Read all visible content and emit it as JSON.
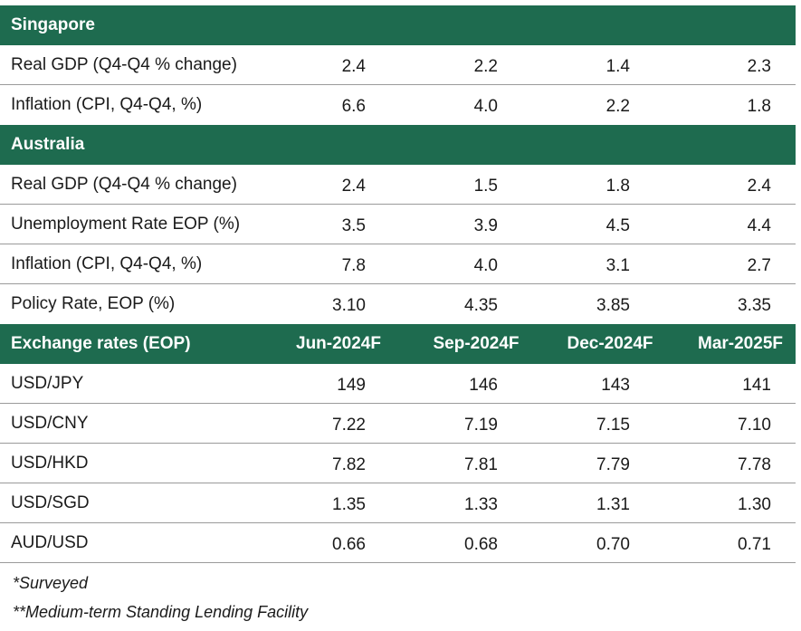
{
  "sections": {
    "singapore": {
      "title": "Singapore",
      "rows": [
        {
          "label": "Real GDP (Q4-Q4 % change)",
          "values": [
            "2.4",
            "2.2",
            "1.4",
            "2.3"
          ]
        },
        {
          "label": "Inflation (CPI, Q4-Q4, %)",
          "values": [
            "6.6",
            "4.0",
            "2.2",
            "1.8"
          ]
        }
      ]
    },
    "australia": {
      "title": "Australia",
      "rows": [
        {
          "label": "Real GDP (Q4-Q4 % change)",
          "values": [
            "2.4",
            "1.5",
            "1.8",
            "2.4"
          ]
        },
        {
          "label": "Unemployment Rate EOP (%)",
          "values": [
            "3.5",
            "3.9",
            "4.5",
            "4.4"
          ]
        },
        {
          "label": "Inflation (CPI, Q4-Q4, %)",
          "values": [
            "7.8",
            "4.0",
            "3.1",
            "2.7"
          ]
        },
        {
          "label": "Policy Rate, EOP (%)",
          "values": [
            "3.10",
            "4.35",
            "3.85",
            "3.35"
          ]
        }
      ]
    },
    "fx": {
      "title": "Exchange rates (EOP)",
      "columns": [
        "Jun-2024F",
        "Sep-2024F",
        "Dec-2024F",
        "Mar-2025F"
      ],
      "rows": [
        {
          "label": "USD/JPY",
          "values": [
            "149",
            "146",
            "143",
            "141"
          ]
        },
        {
          "label": "USD/CNY",
          "values": [
            "7.22",
            "7.19",
            "7.15",
            "7.10"
          ]
        },
        {
          "label": "USD/HKD",
          "values": [
            "7.82",
            "7.81",
            "7.79",
            "7.78"
          ]
        },
        {
          "label": "USD/SGD",
          "values": [
            "1.35",
            "1.33",
            "1.31",
            "1.30"
          ]
        },
        {
          "label": "AUD/USD",
          "values": [
            "0.66",
            "0.68",
            "0.70",
            "0.71"
          ]
        }
      ]
    }
  },
  "notes": [
    "*Surveyed",
    "**Medium-term Standing Lending Facility"
  ],
  "colors": {
    "header_bg": "#1e6b4f",
    "header_text": "#ffffff"
  }
}
